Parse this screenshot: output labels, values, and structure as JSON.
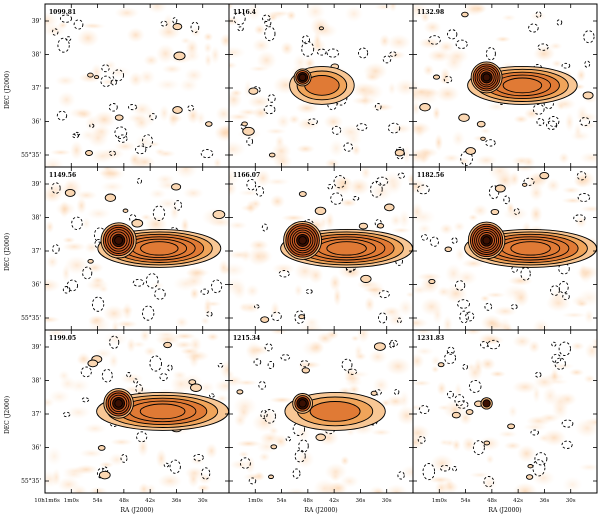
{
  "panels": [
    {
      "velocity": "1099.81",
      "ytick_labels": [
        "39'",
        "38'",
        "37'",
        "36'",
        "55°35'"
      ]
    },
    {
      "velocity": "1116.4",
      "ytick_labels": []
    },
    {
      "velocity": "1132.98",
      "ytick_labels": []
    },
    {
      "velocity": "1149.56",
      "ytick_labels": [
        "39'",
        "38'",
        "37'",
        "36'",
        "55°35'"
      ]
    },
    {
      "velocity": "1166.07",
      "ytick_labels": []
    },
    {
      "velocity": "1182.56",
      "ytick_labels": []
    },
    {
      "velocity": "1199.05",
      "ytick_labels": [
        "39'",
        "38'",
        "37'",
        "36'",
        "55°35'"
      ]
    },
    {
      "velocity": "1215.34",
      "ytick_labels": []
    },
    {
      "velocity": "1231.83",
      "ytick_labels": []
    }
  ],
  "axes": {
    "ylabel": "DEC (J2000)",
    "xlabel": "RA (J2000)",
    "xtick_labels_first": [
      "10h1m6s",
      "1m0s",
      "54s",
      "48s",
      "42s",
      "36s",
      "30s"
    ],
    "xtick_labels_other": [
      "1m0s",
      "54s",
      "48s",
      "42s",
      "36s",
      "30s"
    ]
  },
  "colors": {
    "frame": "#000000",
    "background": "#ffffff",
    "noise_light": "#fde7d2",
    "emission_mid": "#f0a45a",
    "emission_strong": "#d9672a",
    "emission_peak": "#5a1a05"
  },
  "emission_level": [
    0.0,
    0.25,
    0.75,
    0.9,
    1.0,
    0.95,
    0.7,
    0.35,
    0.05
  ]
}
